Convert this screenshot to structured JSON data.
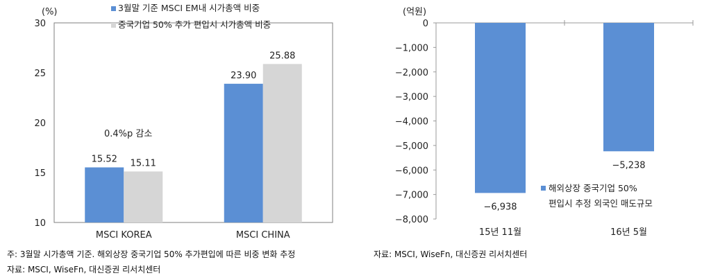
{
  "colors": {
    "blue": "#5b8fd4",
    "gray": "#d6d6d6",
    "axis": "#999999",
    "frame": "#7f7f7f"
  },
  "chart_data": [
    {
      "type": "bar",
      "unit_label": "(%)",
      "categories": [
        "MSCI KOREA",
        "MSCI CHINA"
      ],
      "series": [
        {
          "name": "3월말 기준 MSCI EM내 시가총액 비중",
          "values": [
            15.52,
            23.9
          ],
          "color": "#5b8fd4"
        },
        {
          "name": "중국기업 50% 추가 편입시 시가총액 비중",
          "values": [
            15.11,
            25.88
          ],
          "color": "#d6d6d6"
        }
      ],
      "data_labels": [
        [
          "15.52",
          "15.11"
        ],
        [
          "23.90",
          "25.88"
        ]
      ],
      "annotation": "0.4%p 감소",
      "ylim": [
        10,
        30
      ],
      "yticks": [
        "10",
        "15",
        "20",
        "25",
        "30"
      ],
      "legend_position": "top",
      "grid": false
    },
    {
      "type": "bar",
      "unit_label": "(억원)",
      "categories": [
        "15년 11월",
        "16년 5월"
      ],
      "series": [
        {
          "name": "해외상장 중국기업 50% 편입시 추정 외국인 매도규모",
          "values": [
            -6938,
            -5238
          ],
          "color": "#5b8fd4"
        }
      ],
      "data_labels": [
        "−6,938",
        "−5,238"
      ],
      "legend_lines": [
        "해외상장 중국기업 50%",
        "편입시 추정 외국인 매도규모"
      ],
      "ylim": [
        -8000,
        0
      ],
      "yticks": [
        "0",
        "−1,000",
        "−2,000",
        "−3,000",
        "−4,000",
        "−5,000",
        "−6,000",
        "−7,000",
        "−8,000"
      ],
      "legend_position": "bottom-right",
      "grid": false
    }
  ],
  "notes": {
    "left_note": "주: 3월말 시가총액 기준. 해외상장 중국기업 50% 추가편입에 따른 비중 변화 추정",
    "left_source": "자료: MSCI, WiseFn, 대신증권 리서치센터",
    "right_source": "자료: MSCI, WiseFn, 대신증권 리서치센터"
  }
}
